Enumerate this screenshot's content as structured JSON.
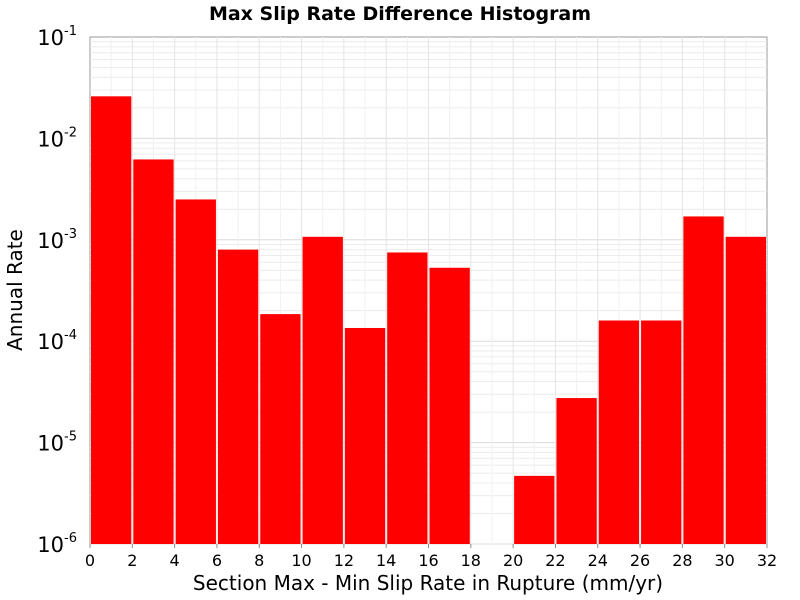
{
  "chart_data": {
    "type": "bar",
    "title": "Max Slip Rate Difference Histogram",
    "xlabel": "Section Max - Min Slip Rate in Rupture (mm/yr)",
    "ylabel": "Annual Rate",
    "y_scale": "log",
    "xlim": [
      0,
      32
    ],
    "ylim": [
      1e-06,
      0.1
    ],
    "grid": true,
    "bin_width": 2,
    "x_ticks": [
      0,
      2,
      4,
      6,
      8,
      10,
      12,
      14,
      16,
      18,
      20,
      22,
      24,
      26,
      28,
      30,
      32
    ],
    "x_tick_labels": [
      "0",
      "2",
      "4",
      "6",
      "8",
      "10",
      "12",
      "14",
      "16",
      "18",
      "20",
      "22",
      "24",
      "26",
      "28",
      "30",
      "32"
    ],
    "y_ticks": [
      {
        "value": 0.1,
        "base": "10",
        "exp": "-1"
      },
      {
        "value": 0.01,
        "base": "10",
        "exp": "-2"
      },
      {
        "value": 0.001,
        "base": "10",
        "exp": "-3"
      },
      {
        "value": 0.0001,
        "base": "10",
        "exp": "-4"
      },
      {
        "value": 1e-05,
        "base": "10",
        "exp": "-5"
      },
      {
        "value": 1e-06,
        "base": "10",
        "exp": "-6"
      }
    ],
    "bar_color": "#ff0000",
    "bins": [
      {
        "x0": 0,
        "x1": 2,
        "value": 0.026
      },
      {
        "x0": 2,
        "x1": 4,
        "value": 0.0062
      },
      {
        "x0": 4,
        "x1": 6,
        "value": 0.0025
      },
      {
        "x0": 6,
        "x1": 8,
        "value": 0.0008
      },
      {
        "x0": 8,
        "x1": 10,
        "value": 0.000185
      },
      {
        "x0": 10,
        "x1": 12,
        "value": 0.00107
      },
      {
        "x0": 12,
        "x1": 14,
        "value": 0.000135
      },
      {
        "x0": 14,
        "x1": 16,
        "value": 0.00075
      },
      {
        "x0": 16,
        "x1": 18,
        "value": 0.00053
      },
      {
        "x0": 18,
        "x1": 20,
        "value": 0
      },
      {
        "x0": 20,
        "x1": 22,
        "value": 4.7e-06
      },
      {
        "x0": 22,
        "x1": 24,
        "value": 2.75e-05
      },
      {
        "x0": 24,
        "x1": 26,
        "value": 0.00016
      },
      {
        "x0": 26,
        "x1": 28,
        "value": 0.00016
      },
      {
        "x0": 28,
        "x1": 30,
        "value": 0.0017
      },
      {
        "x0": 30,
        "x1": 32,
        "value": 0.00107
      }
    ]
  }
}
